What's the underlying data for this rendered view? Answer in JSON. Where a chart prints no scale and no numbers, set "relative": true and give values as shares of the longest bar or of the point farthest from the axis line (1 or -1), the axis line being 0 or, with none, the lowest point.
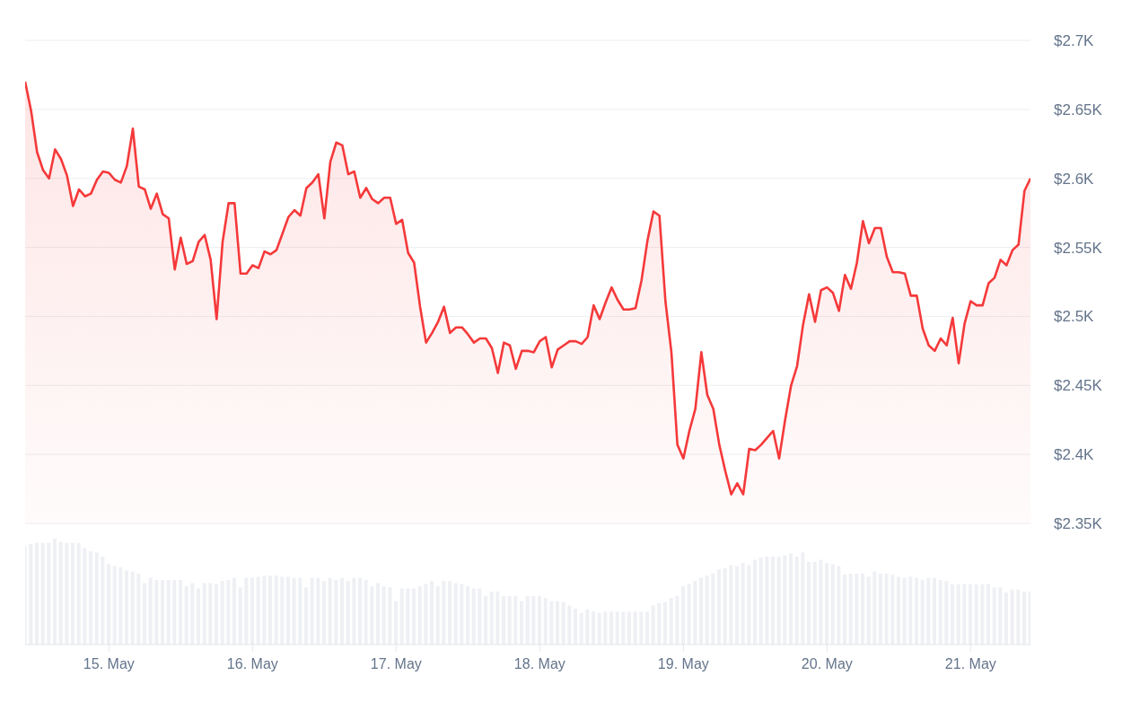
{
  "chart_data": [
    {
      "type": "area",
      "xlim": [
        "--05-14T10:00",
        "--05-21T10:00"
      ],
      "ylim": [
        2350,
        2700
      ],
      "yticks": [
        {
          "value": 2350,
          "label": "$2.35K"
        },
        {
          "value": 2400,
          "label": "$2.4K"
        },
        {
          "value": 2450,
          "label": "$2.45K"
        },
        {
          "value": 2500,
          "label": "$2.5K"
        },
        {
          "value": 2550,
          "label": "$2.55K"
        },
        {
          "value": 2600,
          "label": "$2.6K"
        },
        {
          "value": 2650,
          "label": "$2.65K"
        },
        {
          "value": 2700,
          "label": "$2.7K"
        }
      ],
      "tick_labels": "y",
      "grid": "y",
      "legend": false,
      "series": [
        {
          "color": "#f5393a",
          "values": [
            2670,
            2649,
            2619,
            2606,
            2600,
            2621,
            2614,
            2602,
            2580,
            2592,
            2587,
            2589,
            2599,
            2605,
            2604,
            2599,
            2597,
            2609,
            2636,
            2594,
            2592,
            2578,
            2589,
            2574,
            2571,
            2534,
            2557,
            2538,
            2540,
            2554,
            2559,
            2541,
            2498,
            2554,
            2582,
            2582,
            2531,
            2531,
            2537,
            2535,
            2547,
            2545,
            2548,
            2560,
            2572,
            2577,
            2573,
            2593,
            2597,
            2603,
            2571,
            2612,
            2626,
            2624,
            2603,
            2605,
            2586,
            2593,
            2585,
            2582,
            2586,
            2586,
            2567,
            2570,
            2546,
            2539,
            2507,
            2481,
            2488,
            2496,
            2507,
            2488,
            2492,
            2492,
            2487,
            2481,
            2484,
            2484,
            2477,
            2459,
            2481,
            2479,
            2462,
            2475,
            2475,
            2474,
            2482,
            2485,
            2463,
            2476,
            2479,
            2482,
            2482,
            2480,
            2485,
            2508,
            2498,
            2510,
            2521,
            2512,
            2505,
            2505,
            2506,
            2526,
            2555,
            2576,
            2573,
            2511,
            2474,
            2407,
            2397,
            2417,
            2433,
            2474,
            2443,
            2433,
            2407,
            2388,
            2371,
            2379,
            2371,
            2404,
            2403,
            2407,
            2412,
            2417,
            2397,
            2425,
            2450,
            2464,
            2494,
            2516,
            2496,
            2519,
            2521,
            2517,
            2504,
            2530,
            2520,
            2539,
            2569,
            2553,
            2564,
            2564,
            2543,
            2532,
            2532,
            2531,
            2515,
            2515,
            2491,
            2479,
            2475,
            2484,
            2479,
            2499,
            2466,
            2495,
            2511,
            2508,
            2508,
            2524,
            2528,
            2541,
            2537,
            2548,
            2552,
            2591,
            2600
          ],
          "x": [
            "--05-14T10:00",
            "--05-14T11:00",
            "--05-14T12:00",
            "--05-14T13:00",
            "--05-14T14:00",
            "--05-14T15:00",
            "--05-14T16:00",
            "--05-14T17:00",
            "--05-14T18:00",
            "--05-14T19:00",
            "--05-14T20:00",
            "--05-14T21:00",
            "--05-14T22:00",
            "--05-14T23:00",
            "--05-15T00:00",
            "--05-15T01:00",
            "--05-15T02:00",
            "--05-15T03:00",
            "--05-15T04:00",
            "--05-15T05:00",
            "--05-15T06:00",
            "--05-15T07:00",
            "--05-15T08:00",
            "--05-15T09:00",
            "--05-15T10:00",
            "--05-15T11:00",
            "--05-15T12:00",
            "--05-15T13:00",
            "--05-15T14:00",
            "--05-15T15:00",
            "--05-15T16:00",
            "--05-15T17:00",
            "--05-15T18:00",
            "--05-15T19:00",
            "--05-15T20:00",
            "--05-15T21:00",
            "--05-15T22:00",
            "--05-15T23:00",
            "--05-16T00:00",
            "--05-16T01:00",
            "--05-16T02:00",
            "--05-16T03:00",
            "--05-16T04:00",
            "--05-16T05:00",
            "--05-16T06:00",
            "--05-16T07:00",
            "--05-16T08:00",
            "--05-16T09:00",
            "--05-16T10:00",
            "--05-16T11:00",
            "--05-16T12:00",
            "--05-16T13:00",
            "--05-16T14:00",
            "--05-16T15:00",
            "--05-16T16:00",
            "--05-16T17:00",
            "--05-16T18:00",
            "--05-16T19:00",
            "--05-16T20:00",
            "--05-16T21:00",
            "--05-16T22:00",
            "--05-16T23:00",
            "--05-17T00:00",
            "--05-17T01:00",
            "--05-17T02:00",
            "--05-17T03:00",
            "--05-17T04:00",
            "--05-17T05:00",
            "--05-17T06:00",
            "--05-17T07:00",
            "--05-17T08:00",
            "--05-17T09:00",
            "--05-17T10:00",
            "--05-17T11:00",
            "--05-17T12:00",
            "--05-17T13:00",
            "--05-17T14:00",
            "--05-17T15:00",
            "--05-17T16:00",
            "--05-17T17:00",
            "--05-17T18:00",
            "--05-17T19:00",
            "--05-17T20:00",
            "--05-17T21:00",
            "--05-17T22:00",
            "--05-17T23:00",
            "--05-18T00:00",
            "--05-18T01:00",
            "--05-18T02:00",
            "--05-18T03:00",
            "--05-18T04:00",
            "--05-18T05:00",
            "--05-18T06:00",
            "--05-18T07:00",
            "--05-18T08:00",
            "--05-18T09:00",
            "--05-18T10:00",
            "--05-18T11:00",
            "--05-18T12:00",
            "--05-18T13:00",
            "--05-18T14:00",
            "--05-18T15:00",
            "--05-18T16:00",
            "--05-18T17:00",
            "--05-18T18:00",
            "--05-18T19:00",
            "--05-18T20:00",
            "--05-18T21:00",
            "--05-18T22:00",
            "--05-18T23:00",
            "--05-19T00:00",
            "--05-19T01:00",
            "--05-19T02:00",
            "--05-19T03:00",
            "--05-19T04:00",
            "--05-19T05:00",
            "--05-19T06:00",
            "--05-19T07:00",
            "--05-19T08:00",
            "--05-19T09:00",
            "--05-19T10:00",
            "--05-19T11:00",
            "--05-19T12:00",
            "--05-19T13:00",
            "--05-19T14:00",
            "--05-19T15:00",
            "--05-19T16:00",
            "--05-19T17:00",
            "--05-19T18:00",
            "--05-19T19:00",
            "--05-19T20:00",
            "--05-19T21:00",
            "--05-19T22:00",
            "--05-19T23:00",
            "--05-20T00:00",
            "--05-20T01:00",
            "--05-20T02:00",
            "--05-20T03:00",
            "--05-20T04:00",
            "--05-20T05:00",
            "--05-20T06:00",
            "--05-20T07:00",
            "--05-20T08:00",
            "--05-20T09:00",
            "--05-20T10:00",
            "--05-20T11:00",
            "--05-20T12:00",
            "--05-20T13:00",
            "--05-20T14:00",
            "--05-20T15:00",
            "--05-20T16:00",
            "--05-20T17:00",
            "--05-20T18:00",
            "--05-20T19:00",
            "--05-20T20:00",
            "--05-20T21:00",
            "--05-20T22:00",
            "--05-20T23:00",
            "--05-21T00:00",
            "--05-21T01:00",
            "--05-21T02:00",
            "--05-21T03:00",
            "--05-21T04:00",
            "--05-21T05:00",
            "--05-21T06:00",
            "--05-21T07:00",
            "--05-21T08:00",
            "--05-21T09:00",
            "--05-21T10:00"
          ]
        }
      ]
    },
    {
      "type": "bar",
      "relative": true,
      "tick_labels": "x",
      "xlim": [
        "--05-14T10:00",
        "--05-21T10:00"
      ],
      "xticks": [
        {
          "value": "--05-15",
          "label": "15. May"
        },
        {
          "value": "--05-16",
          "label": "16. May"
        },
        {
          "value": "--05-17",
          "label": "17. May"
        },
        {
          "value": "--05-18",
          "label": "18. May"
        },
        {
          "value": "--05-19",
          "label": "19. May"
        },
        {
          "value": "--05-20",
          "label": "20. May"
        },
        {
          "value": "--05-21",
          "label": "21. May"
        }
      ],
      "legend": false,
      "series": [
        {
          "color": "#eef0f4",
          "x": [
            "--05-14T10:00",
            "--05-14T11:00",
            "--05-14T12:00",
            "--05-14T13:00",
            "--05-14T14:00",
            "--05-14T15:00",
            "--05-14T16:00",
            "--05-14T17:00",
            "--05-14T18:00",
            "--05-14T19:00",
            "--05-14T20:00",
            "--05-14T21:00",
            "--05-14T22:00",
            "--05-14T23:00",
            "--05-15T00:00",
            "--05-15T01:00",
            "--05-15T02:00",
            "--05-15T03:00",
            "--05-15T04:00",
            "--05-15T05:00",
            "--05-15T06:00",
            "--05-15T07:00",
            "--05-15T08:00",
            "--05-15T09:00",
            "--05-15T10:00",
            "--05-15T11:00",
            "--05-15T12:00",
            "--05-15T13:00",
            "--05-15T14:00",
            "--05-15T15:00",
            "--05-15T16:00",
            "--05-15T17:00",
            "--05-15T18:00",
            "--05-15T19:00",
            "--05-15T20:00",
            "--05-15T21:00",
            "--05-15T22:00",
            "--05-15T23:00",
            "--05-16T00:00",
            "--05-16T01:00",
            "--05-16T02:00",
            "--05-16T03:00",
            "--05-16T04:00",
            "--05-16T05:00",
            "--05-16T06:00",
            "--05-16T07:00",
            "--05-16T08:00",
            "--05-16T09:00",
            "--05-16T10:00",
            "--05-16T11:00",
            "--05-16T12:00",
            "--05-16T13:00",
            "--05-16T14:00",
            "--05-16T15:00",
            "--05-16T16:00",
            "--05-16T17:00",
            "--05-16T18:00",
            "--05-16T19:00",
            "--05-16T20:00",
            "--05-16T21:00",
            "--05-16T22:00",
            "--05-16T23:00",
            "--05-17T00:00",
            "--05-17T01:00",
            "--05-17T02:00",
            "--05-17T03:00",
            "--05-17T04:00",
            "--05-17T05:00",
            "--05-17T06:00",
            "--05-17T07:00",
            "--05-17T08:00",
            "--05-17T09:00",
            "--05-17T10:00",
            "--05-17T11:00",
            "--05-17T12:00",
            "--05-17T13:00",
            "--05-17T14:00",
            "--05-17T15:00",
            "--05-17T16:00",
            "--05-17T17:00",
            "--05-17T18:00",
            "--05-17T19:00",
            "--05-17T20:00",
            "--05-17T21:00",
            "--05-17T22:00",
            "--05-17T23:00",
            "--05-18T00:00",
            "--05-18T01:00",
            "--05-18T02:00",
            "--05-18T03:00",
            "--05-18T04:00",
            "--05-18T05:00",
            "--05-18T06:00",
            "--05-18T07:00",
            "--05-18T08:00",
            "--05-18T09:00",
            "--05-18T10:00",
            "--05-18T11:00",
            "--05-18T12:00",
            "--05-18T13:00",
            "--05-18T14:00",
            "--05-18T15:00",
            "--05-18T16:00",
            "--05-18T17:00",
            "--05-18T18:00",
            "--05-18T19:00",
            "--05-18T20:00",
            "--05-18T21:00",
            "--05-18T22:00",
            "--05-18T23:00",
            "--05-19T00:00",
            "--05-19T01:00",
            "--05-19T02:00",
            "--05-19T03:00",
            "--05-19T04:00",
            "--05-19T05:00",
            "--05-19T06:00",
            "--05-19T07:00",
            "--05-19T08:00",
            "--05-19T09:00",
            "--05-19T10:00",
            "--05-19T11:00",
            "--05-19T12:00",
            "--05-19T13:00",
            "--05-19T14:00",
            "--05-19T15:00",
            "--05-19T16:00",
            "--05-19T17:00",
            "--05-19T18:00",
            "--05-19T19:00",
            "--05-19T20:00",
            "--05-19T21:00",
            "--05-19T22:00",
            "--05-19T23:00",
            "--05-20T00:00",
            "--05-20T01:00",
            "--05-20T02:00",
            "--05-20T03:00",
            "--05-20T04:00",
            "--05-20T05:00",
            "--05-20T06:00",
            "--05-20T07:00",
            "--05-20T08:00",
            "--05-20T09:00",
            "--05-20T10:00",
            "--05-20T11:00",
            "--05-20T12:00",
            "--05-20T13:00",
            "--05-20T14:00",
            "--05-20T15:00",
            "--05-20T16:00",
            "--05-20T17:00",
            "--05-20T18:00",
            "--05-20T19:00",
            "--05-20T20:00",
            "--05-20T21:00",
            "--05-20T22:00",
            "--05-20T23:00",
            "--05-21T00:00",
            "--05-21T01:00",
            "--05-21T02:00",
            "--05-21T03:00",
            "--05-21T04:00",
            "--05-21T05:00",
            "--05-21T06:00",
            "--05-21T07:00",
            "--05-21T08:00",
            "--05-21T09:00",
            "--05-21T10:00"
          ],
          "values": [
            0.93,
            0.95,
            0.96,
            0.96,
            0.96,
            1.0,
            0.97,
            0.96,
            0.96,
            0.96,
            0.91,
            0.88,
            0.87,
            0.83,
            0.76,
            0.74,
            0.73,
            0.7,
            0.69,
            0.67,
            0.58,
            0.63,
            0.61,
            0.61,
            0.61,
            0.61,
            0.61,
            0.55,
            0.58,
            0.53,
            0.58,
            0.58,
            0.57,
            0.6,
            0.61,
            0.63,
            0.54,
            0.63,
            0.63,
            0.64,
            0.65,
            0.65,
            0.65,
            0.64,
            0.64,
            0.63,
            0.63,
            0.54,
            0.63,
            0.63,
            0.6,
            0.63,
            0.61,
            0.63,
            0.6,
            0.63,
            0.63,
            0.61,
            0.55,
            0.58,
            0.55,
            0.54,
            0.41,
            0.53,
            0.53,
            0.53,
            0.55,
            0.57,
            0.6,
            0.55,
            0.6,
            0.6,
            0.58,
            0.57,
            0.55,
            0.53,
            0.53,
            0.46,
            0.5,
            0.5,
            0.46,
            0.46,
            0.46,
            0.41,
            0.46,
            0.46,
            0.46,
            0.44,
            0.41,
            0.41,
            0.4,
            0.37,
            0.34,
            0.3,
            0.33,
            0.31,
            0.3,
            0.31,
            0.31,
            0.31,
            0.31,
            0.31,
            0.31,
            0.31,
            0.31,
            0.37,
            0.39,
            0.4,
            0.44,
            0.46,
            0.55,
            0.57,
            0.6,
            0.63,
            0.65,
            0.67,
            0.71,
            0.72,
            0.75,
            0.74,
            0.77,
            0.75,
            0.8,
            0.82,
            0.83,
            0.83,
            0.83,
            0.84,
            0.86,
            0.83,
            0.87,
            0.78,
            0.78,
            0.8,
            0.77,
            0.76,
            0.74,
            0.66,
            0.67,
            0.67,
            0.67,
            0.64,
            0.69,
            0.67,
            0.67,
            0.66,
            0.64,
            0.63,
            0.64,
            0.63,
            0.61,
            0.63,
            0.63,
            0.61,
            0.6,
            0.57,
            0.57,
            0.57,
            0.57,
            0.57,
            0.57,
            0.57,
            0.54,
            0.54,
            0.49,
            0.52,
            0.52,
            0.5,
            0.5
          ]
        }
      ]
    }
  ]
}
